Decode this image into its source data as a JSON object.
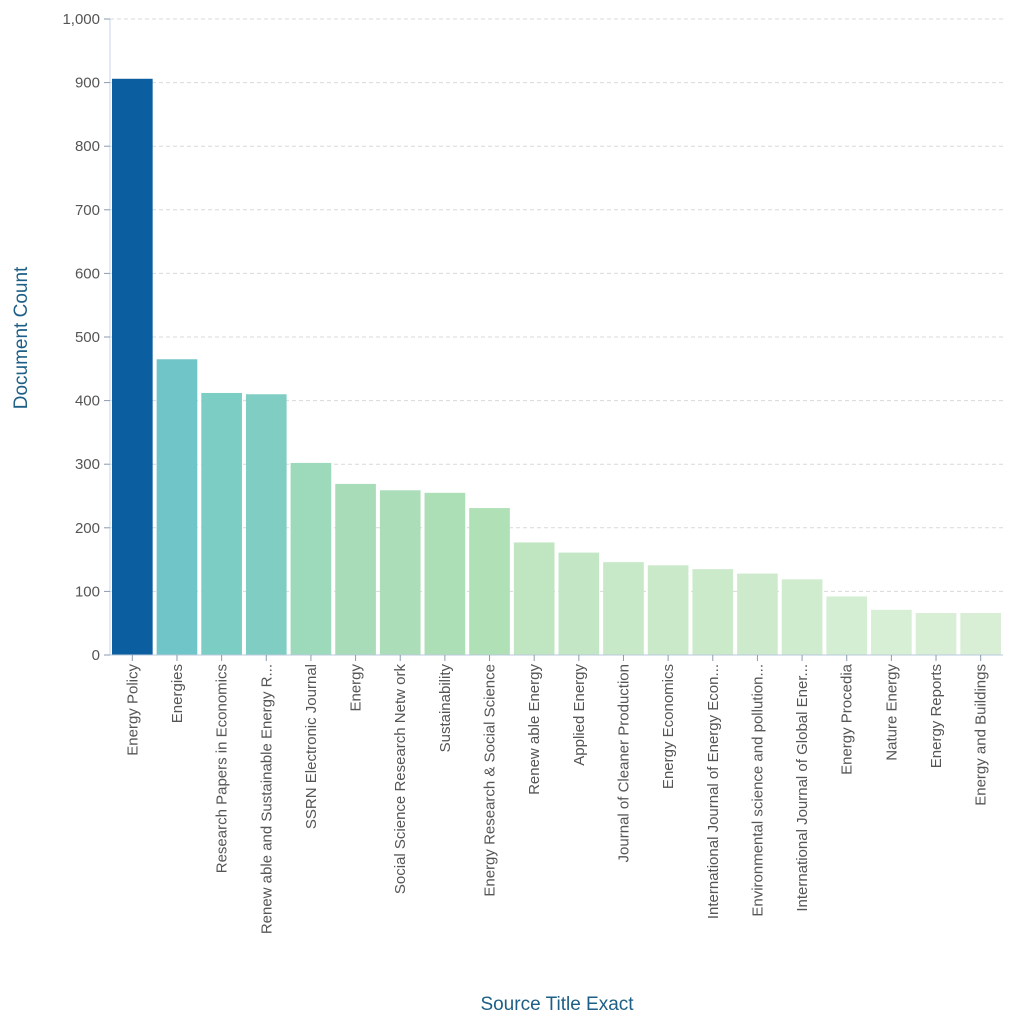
{
  "chart_data": {
    "type": "bar",
    "xlabel": "Source Title Exact",
    "ylabel": "Document Count",
    "ylim": [
      0,
      1000
    ],
    "yticks": [
      0,
      100,
      200,
      300,
      400,
      500,
      600,
      700,
      800,
      900,
      1000
    ],
    "ytick_labels": [
      "0",
      "100",
      "200",
      "300",
      "400",
      "500",
      "600",
      "700",
      "800",
      "900",
      "1,000"
    ],
    "grid": "horizontal dashed",
    "categories": [
      "Energy Policy",
      "Energies",
      "Research Papers in Economics",
      "Renew able and Sustainable Energy R...",
      "SSRN Electronic Journal",
      "Energy",
      "Social Science Research Netw ork",
      "Sustainability",
      "Energy Research & Social Science",
      "Renew able Energy",
      "Applied Energy",
      "Journal of Cleaner Production",
      "Energy Economics",
      "International Journal of Energy Econ...",
      "Environmental science and pollution...",
      "International Journal of Global Ener...",
      "Energy Procedia",
      "Nature Energy",
      "Energy Reports",
      "Energy and Buildings"
    ],
    "values": [
      906,
      465,
      412,
      410,
      302,
      269,
      259,
      255,
      231,
      177,
      161,
      146,
      141,
      135,
      128,
      119,
      92,
      71,
      66,
      66
    ],
    "colors": [
      "#0b5fa0",
      "#6fc5c8",
      "#7ccdc4",
      "#7fcdc3",
      "#9dd9bb",
      "#a8dcb9",
      "#abdeb8",
      "#addfb7",
      "#b0e0b6",
      "#c0e6c1",
      "#c3e7c4",
      "#c7e9c7",
      "#c9e9c8",
      "#cbeaca",
      "#cdebcc",
      "#cfecce",
      "#d3eed2",
      "#d6efd5",
      "#d8efd6",
      "#d8efd6"
    ]
  }
}
